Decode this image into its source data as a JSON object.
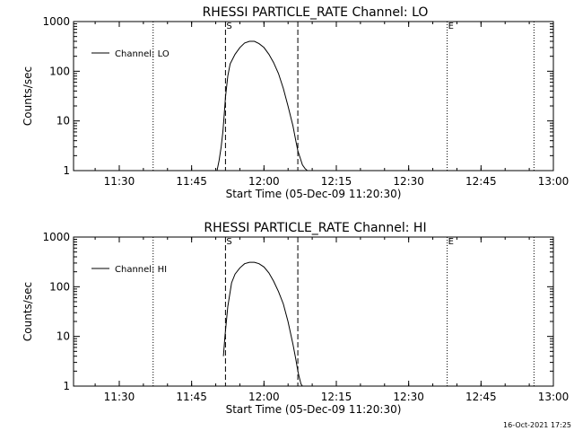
{
  "footer_timestamp": "16-Oct-2021 17:25",
  "chart_data": [
    {
      "type": "line",
      "title": "RHESSI PARTICLE_RATE Channel: LO",
      "xlabel": "Start Time (05-Dec-09 11:20:30)",
      "ylabel": "Counts/sec",
      "yscale": "log",
      "ylim": [
        1,
        1000
      ],
      "xlim": [
        11.342,
        13.0
      ],
      "x_ticks": [
        11.5,
        11.75,
        12.0,
        12.25,
        12.5,
        12.75,
        13.0
      ],
      "x_tick_labels": [
        "11:30",
        "11:45",
        "12:00",
        "12:15",
        "12:30",
        "12:45",
        "13:00"
      ],
      "y_ticks": [
        1,
        10,
        100,
        1000
      ],
      "y_tick_labels": [
        "1",
        "10",
        "100",
        "1000"
      ],
      "legend": {
        "placement": "top-left",
        "entries": [
          "Channel: LO"
        ]
      },
      "markers": [
        {
          "x": 11.867,
          "label": "S",
          "style": "dashed"
        },
        {
          "x": 12.117,
          "label": "",
          "style": "dashed"
        },
        {
          "x": 12.633,
          "label": "E",
          "style": "dotted"
        },
        {
          "x": 11.617,
          "label": "",
          "style": "dotted"
        },
        {
          "x": 12.933,
          "label": "",
          "style": "dotted"
        }
      ],
      "series": [
        {
          "name": "Channel: LO",
          "x": [
            11.838,
            11.845,
            11.852,
            11.858,
            11.862,
            11.867,
            11.875,
            11.883,
            11.9,
            11.917,
            11.933,
            11.95,
            11.967,
            11.983,
            12.0,
            12.017,
            12.033,
            12.05,
            12.067,
            12.083,
            12.1,
            12.11,
            12.117,
            12.125,
            12.133,
            12.142,
            12.15
          ],
          "values": [
            1.0,
            1.6,
            3,
            6,
            12,
            30,
            80,
            140,
            220,
            300,
            370,
            400,
            400,
            360,
            300,
            220,
            150,
            90,
            45,
            20,
            8,
            4,
            2.5,
            1.8,
            1.3,
            1.1,
            1.0
          ]
        }
      ]
    },
    {
      "type": "line",
      "title": "RHESSI PARTICLE_RATE Channel: HI",
      "xlabel": "Start Time (05-Dec-09 11:20:30)",
      "ylabel": "Counts/sec",
      "yscale": "log",
      "ylim": [
        1,
        1000
      ],
      "xlim": [
        11.342,
        13.0
      ],
      "x_ticks": [
        11.5,
        11.75,
        12.0,
        12.25,
        12.5,
        12.75,
        13.0
      ],
      "x_tick_labels": [
        "11:30",
        "11:45",
        "12:00",
        "12:15",
        "12:30",
        "12:45",
        "13:00"
      ],
      "y_ticks": [
        1,
        10,
        100,
        1000
      ],
      "y_tick_labels": [
        "1",
        "10",
        "100",
        "1000"
      ],
      "legend": {
        "placement": "top-left",
        "entries": [
          "Channel: HI"
        ]
      },
      "markers": [
        {
          "x": 11.867,
          "label": "S",
          "style": "dashed"
        },
        {
          "x": 12.117,
          "label": "",
          "style": "dashed"
        },
        {
          "x": 12.633,
          "label": "E",
          "style": "dotted"
        },
        {
          "x": 11.617,
          "label": "",
          "style": "dotted"
        },
        {
          "x": 12.933,
          "label": "",
          "style": "dotted"
        }
      ],
      "series": [
        {
          "name": "Channel: HI",
          "x": [
            11.86,
            11.865,
            11.875,
            11.888,
            11.9,
            11.917,
            11.933,
            11.95,
            11.967,
            11.983,
            12.0,
            12.017,
            12.033,
            12.05,
            12.067,
            12.083,
            12.1,
            12.11,
            12.117,
            12.122,
            12.128,
            12.133
          ],
          "values": [
            4,
            10,
            40,
            120,
            180,
            240,
            290,
            310,
            310,
            290,
            250,
            190,
            130,
            80,
            45,
            20,
            7,
            3.5,
            2,
            1.5,
            1.1,
            1.0
          ]
        }
      ]
    }
  ]
}
